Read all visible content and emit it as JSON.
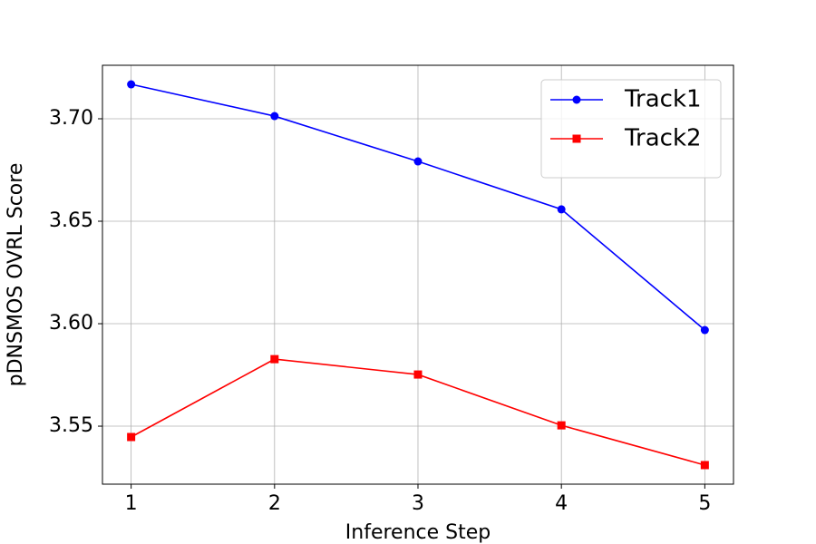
{
  "chart_data": {
    "type": "line",
    "x_label": "Inference Step",
    "y_label": "pDNSMOS OVRL Score",
    "x": [
      1,
      2,
      3,
      4,
      5
    ],
    "series": [
      {
        "name": "Track1",
        "color": "#0000ff",
        "marker": "circle",
        "values": [
          3.7168,
          3.7013,
          3.6792,
          3.6558,
          3.5969
        ]
      },
      {
        "name": "Track2",
        "color": "#ff0000",
        "marker": "square",
        "values": [
          3.5447,
          3.5827,
          3.5752,
          3.5504,
          3.531
        ]
      }
    ],
    "xlim": [
      0.8,
      5.2
    ],
    "xticks": [
      1,
      2,
      3,
      4,
      5
    ],
    "ylim": [
      3.5217,
      3.7261
    ],
    "yticks": [
      {
        "value": 3.55,
        "label": "3.55"
      },
      {
        "value": 3.6,
        "label": "3.60"
      },
      {
        "value": 3.65,
        "label": "3.65"
      },
      {
        "value": 3.7,
        "label": "3.70"
      }
    ],
    "grid": true,
    "legend": "upper-right"
  }
}
